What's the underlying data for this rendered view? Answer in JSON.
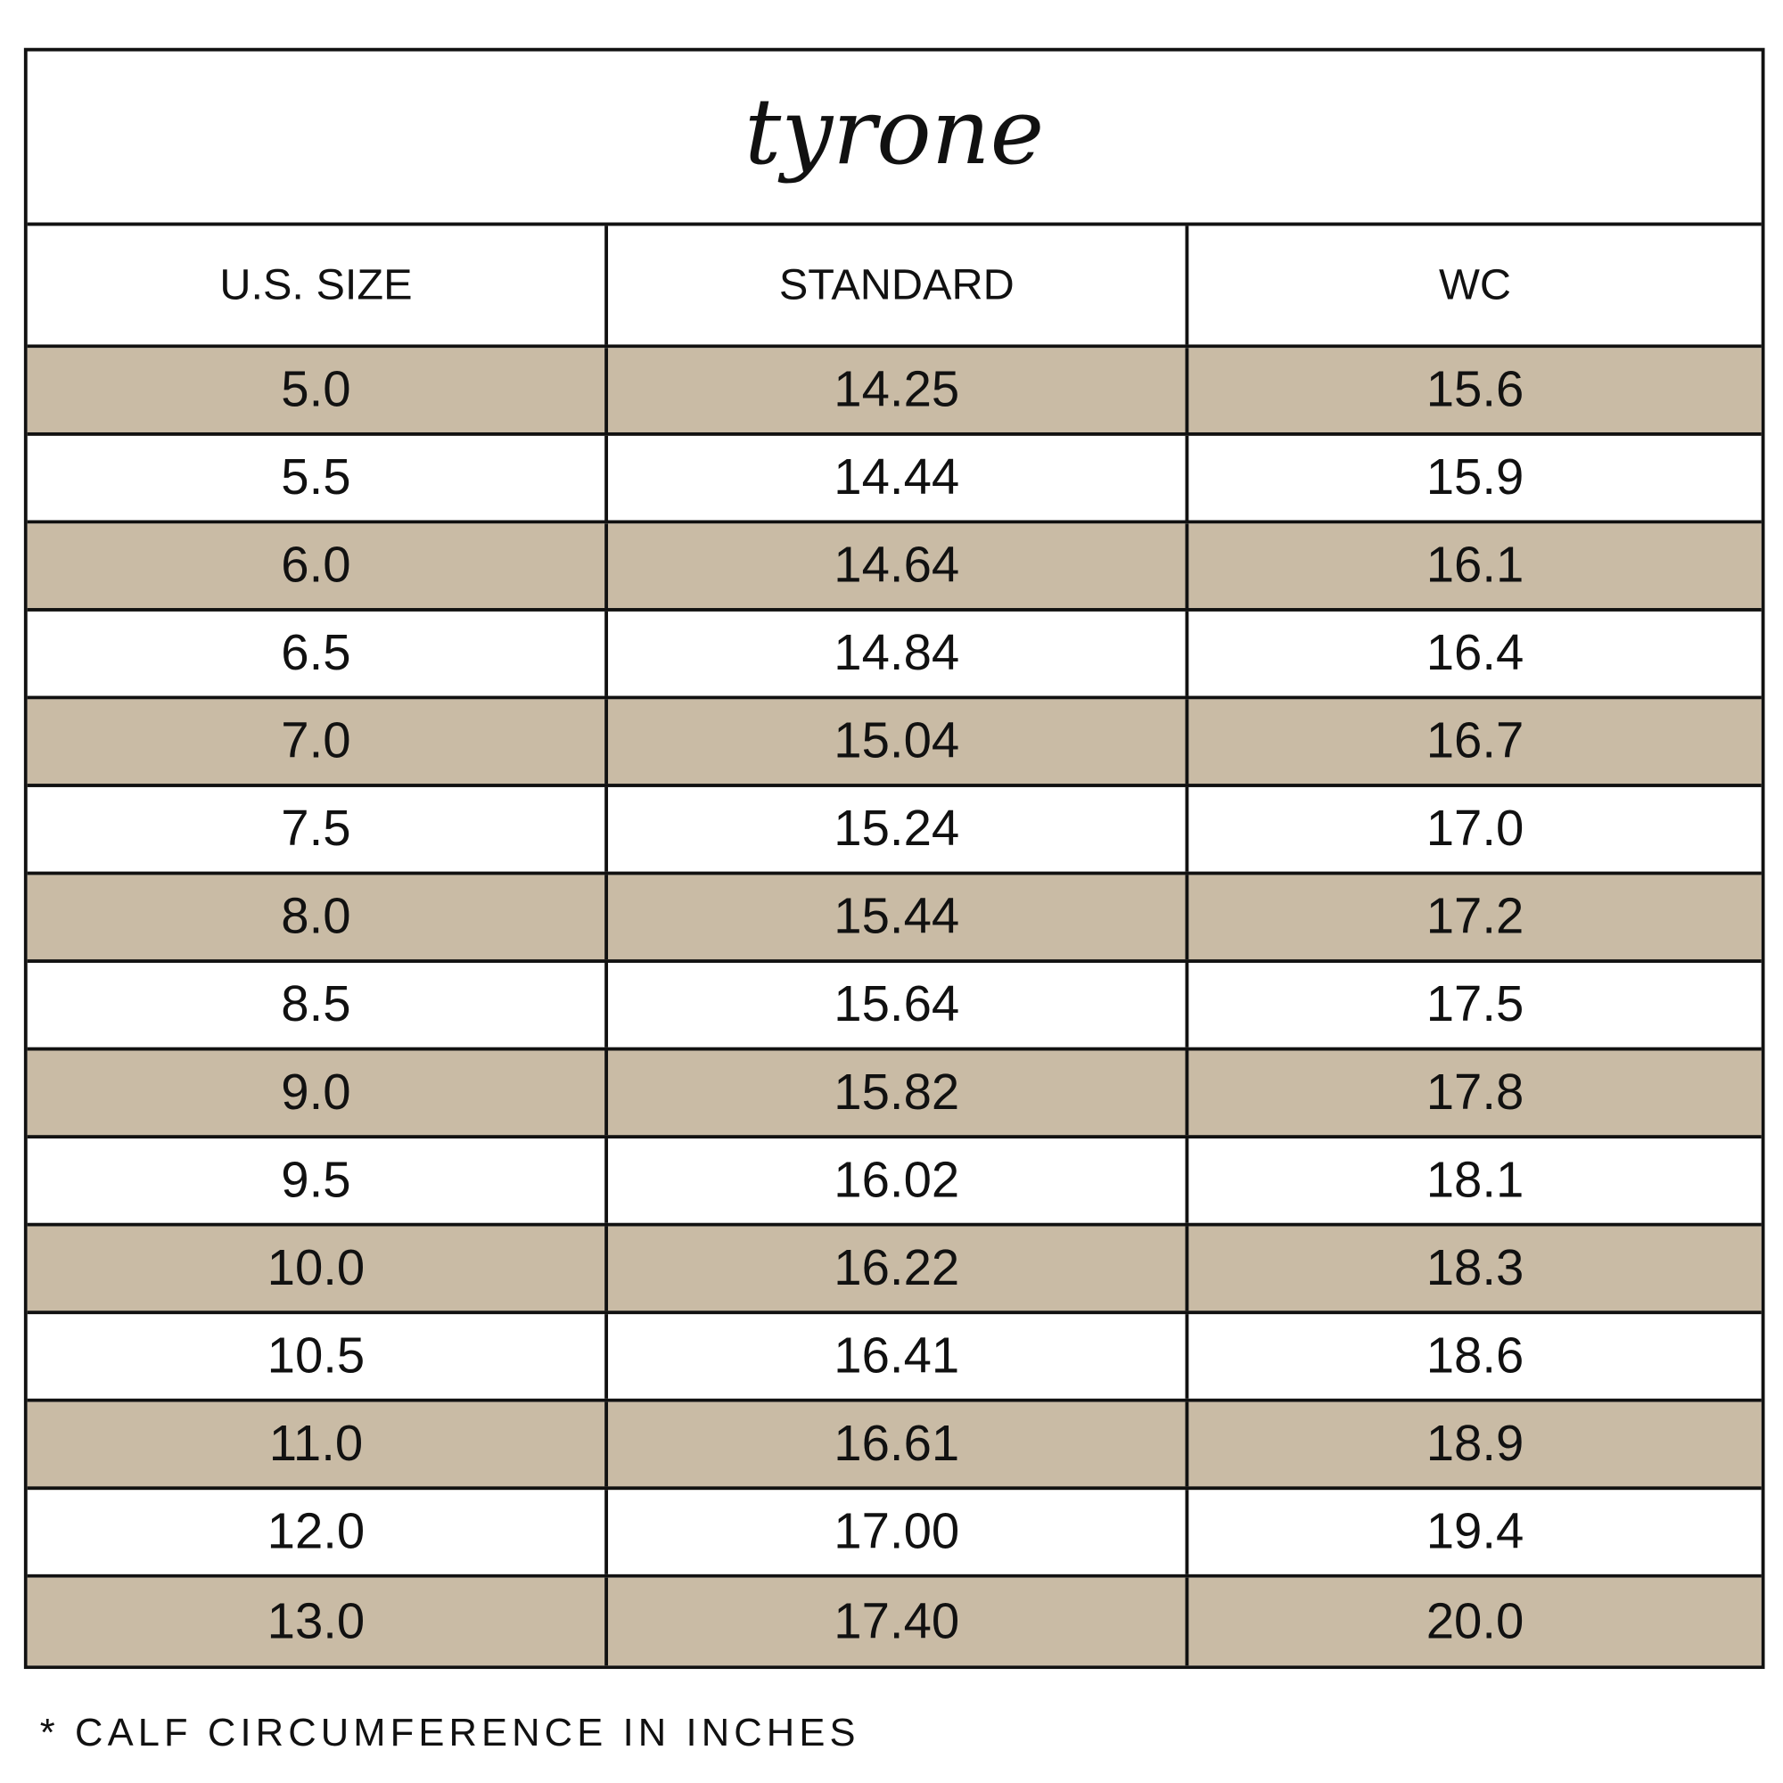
{
  "title": "tyrone",
  "headers": [
    "U.S. SIZE",
    "STANDARD",
    "WC"
  ],
  "row_color": "#c9bba5",
  "rows": [
    [
      "5.0",
      "14.25",
      "15.6"
    ],
    [
      "5.5",
      "14.44",
      "15.9"
    ],
    [
      "6.0",
      "14.64",
      "16.1"
    ],
    [
      "6.5",
      "14.84",
      "16.4"
    ],
    [
      "7.0",
      "15.04",
      "16.7"
    ],
    [
      "7.5",
      "15.24",
      "17.0"
    ],
    [
      "8.0",
      "15.44",
      "17.2"
    ],
    [
      "8.5",
      "15.64",
      "17.5"
    ],
    [
      "9.0",
      "15.82",
      "17.8"
    ],
    [
      "9.5",
      "16.02",
      "18.1"
    ],
    [
      "10.0",
      "16.22",
      "18.3"
    ],
    [
      "10.5",
      "16.41",
      "18.6"
    ],
    [
      "11.0",
      "16.61",
      "18.9"
    ],
    [
      "12.0",
      "17.00",
      "19.4"
    ],
    [
      "13.0",
      "17.40",
      "20.0"
    ]
  ],
  "footnote": "* CALF CIRCUMFERENCE IN INCHES"
}
